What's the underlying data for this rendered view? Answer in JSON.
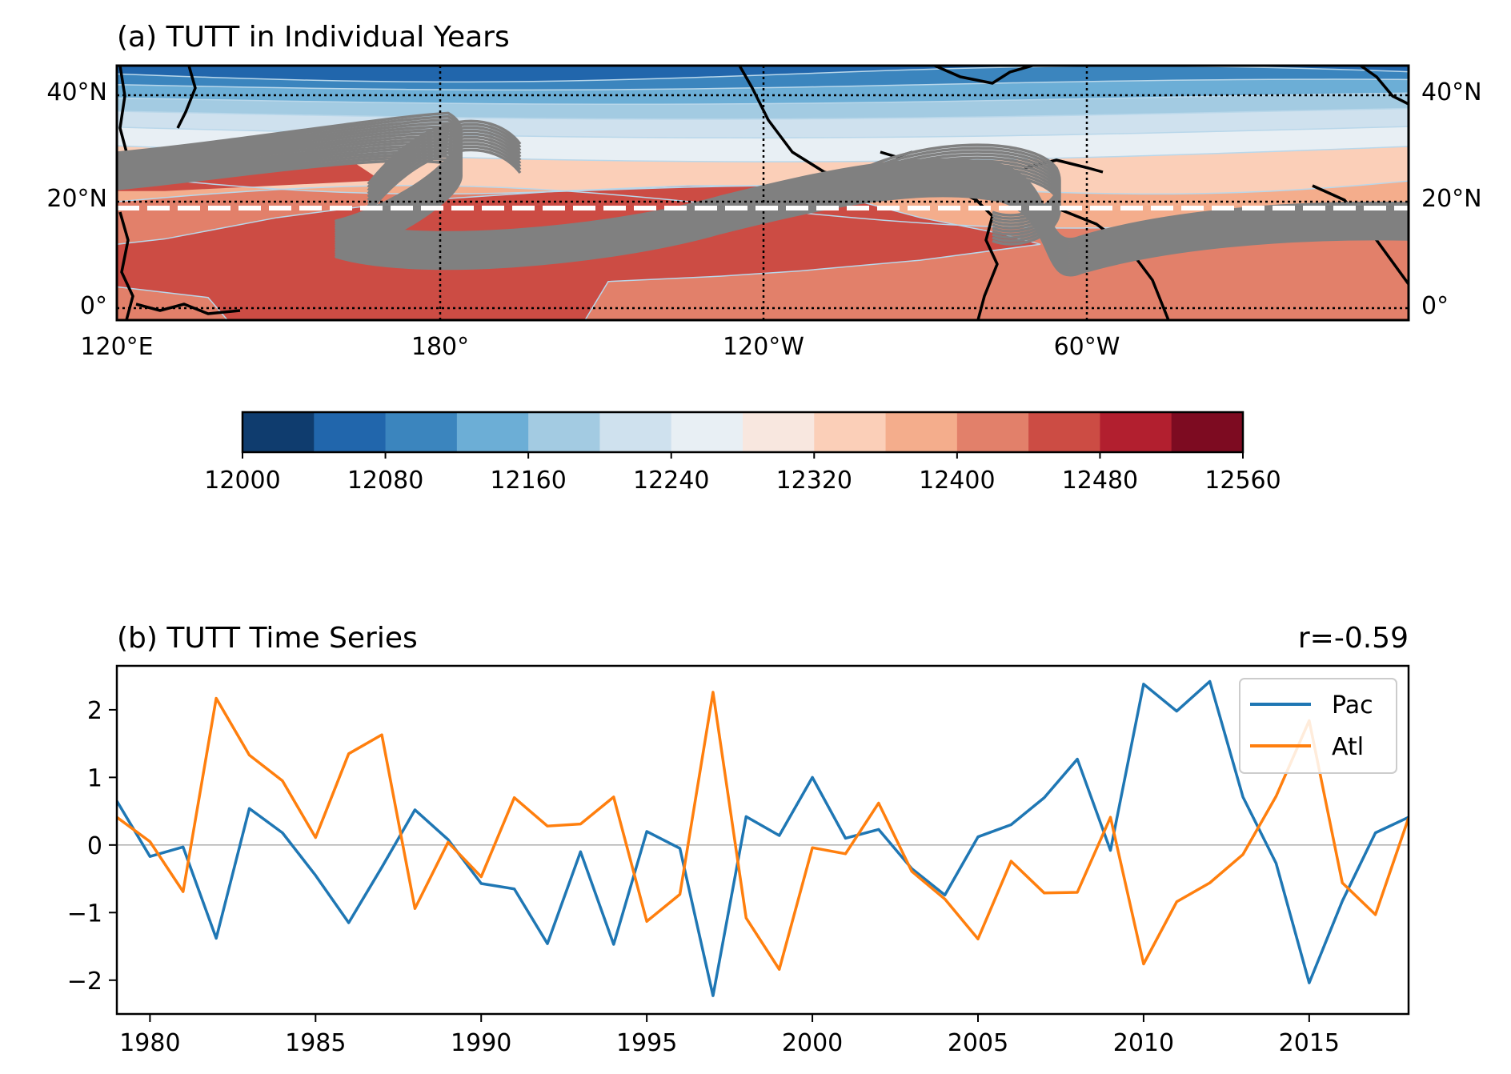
{
  "panel_a": {
    "title": "(a) TUTT in Individual Years",
    "lat_labels": [
      "40°N",
      "20°N",
      "0°"
    ],
    "lon_labels": [
      "120°E",
      "180°",
      "120°W",
      "60°W"
    ],
    "colorbar": {
      "ticks": [
        "12000",
        "12080",
        "12160",
        "12240",
        "12320",
        "12400",
        "12480",
        "12560"
      ],
      "colors": [
        "#0f3c6e",
        "#2166ac",
        "#3b85be",
        "#6caed6",
        "#a3cbe2",
        "#cfe1ee",
        "#e8eff4",
        "#f8e7df",
        "#fbcfb8",
        "#f4ad8c",
        "#e2806a",
        "#cc4c44",
        "#b21f2f",
        "#7d0b21"
      ]
    },
    "guide_line": "white dashed line near 18°N",
    "track_color": "#808080"
  },
  "panel_b": {
    "title": "(b) TUTT Time Series",
    "annotation": "r=-0.59"
  },
  "chart_data": [
    {
      "type": "heatmap",
      "title": "(a) TUTT in Individual Years",
      "x_ticks": [
        "120°E",
        "180°",
        "120°W",
        "60°W"
      ],
      "y_ticks": [
        "40°N",
        "20°N",
        "0°"
      ],
      "colorbar_range": [
        12000,
        12560
      ],
      "colorbar_step": 40,
      "colorbar_tick_labels": [
        12000,
        12080,
        12160,
        12240,
        12320,
        12400,
        12480,
        12560
      ],
      "grid": true
    },
    {
      "type": "line",
      "title": "(b) TUTT Time Series",
      "annotation": "r=-0.59",
      "x": [
        1979,
        1980,
        1981,
        1982,
        1983,
        1984,
        1985,
        1986,
        1987,
        1988,
        1989,
        1990,
        1991,
        1992,
        1993,
        1994,
        1995,
        1996,
        1997,
        1998,
        1999,
        2000,
        2001,
        2002,
        2003,
        2004,
        2005,
        2006,
        2007,
        2008,
        2009,
        2010,
        2011,
        2012,
        2013,
        2014,
        2015,
        2016,
        2017,
        2018
      ],
      "series": [
        {
          "name": "Pac",
          "color": "#1f77b4",
          "values": [
            0.65,
            -0.17,
            -0.03,
            -1.38,
            0.54,
            0.18,
            -0.45,
            -1.15,
            -0.33,
            0.52,
            0.08,
            -0.57,
            -0.65,
            -1.46,
            -0.1,
            -1.47,
            0.2,
            -0.05,
            -2.23,
            0.42,
            0.14,
            1.0,
            0.1,
            0.23,
            -0.35,
            -0.74,
            0.12,
            0.3,
            0.7,
            1.27,
            -0.08,
            2.38,
            1.98,
            2.42,
            0.71,
            -0.27,
            -2.04,
            -0.83,
            0.18,
            0.41
          ]
        },
        {
          "name": "Atl",
          "color": "#ff7f0e",
          "values": [
            0.41,
            0.05,
            -0.69,
            2.17,
            1.33,
            0.95,
            0.11,
            1.35,
            1.63,
            -0.94,
            0.04,
            -0.47,
            0.7,
            0.28,
            0.31,
            0.71,
            -1.13,
            -0.73,
            2.26,
            -1.08,
            -1.84,
            -0.04,
            -0.13,
            0.62,
            -0.39,
            -0.8,
            -1.39,
            -0.24,
            -0.71,
            -0.7,
            0.41,
            -1.76,
            -0.84,
            -0.56,
            -0.14,
            0.72,
            1.84,
            -0.56,
            -1.03,
            0.4
          ]
        }
      ],
      "x_ticks": [
        "1980",
        "1985",
        "1990",
        "1995",
        "2000",
        "2005",
        "2010",
        "2015"
      ],
      "y_ticks": [
        "−2",
        "−1",
        "0",
        "1",
        "2"
      ],
      "xlim": [
        1979,
        2018
      ],
      "ylim": [
        -2.5,
        2.65
      ],
      "zero_line": true,
      "legend": "top-right"
    }
  ]
}
